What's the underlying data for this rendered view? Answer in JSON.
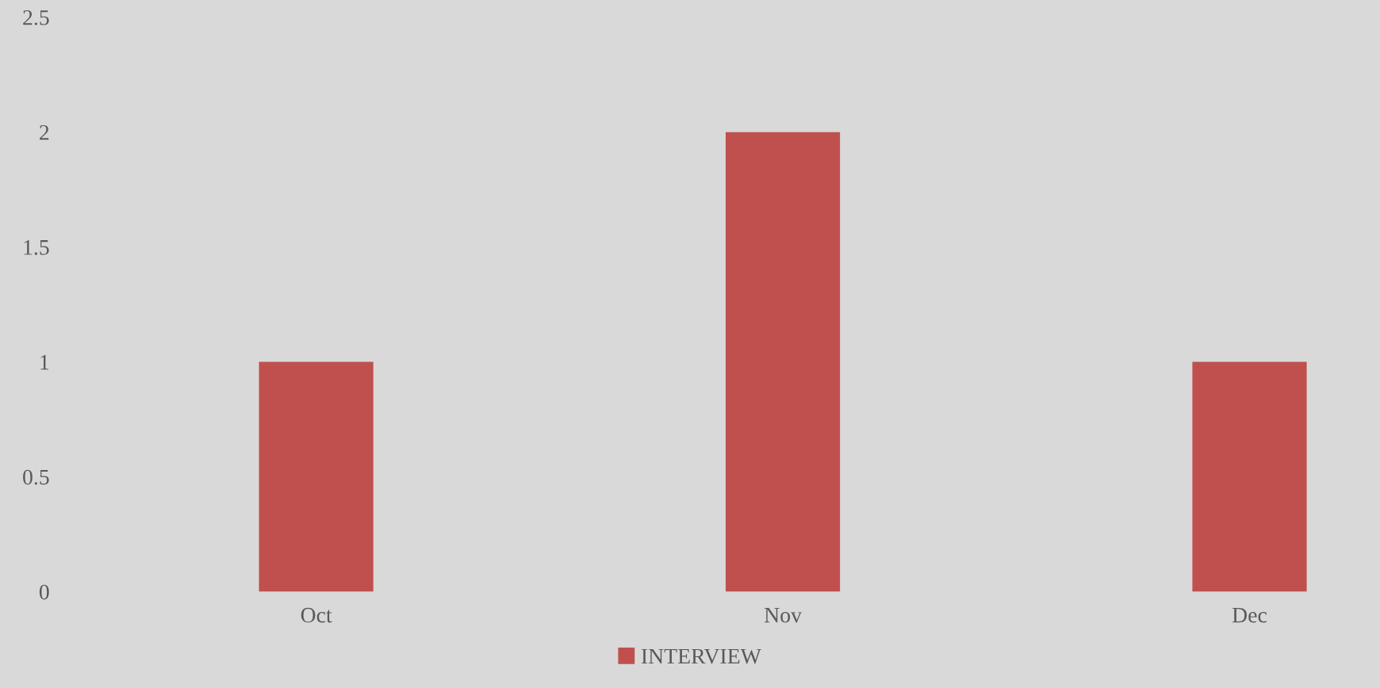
{
  "chart_data": {
    "type": "bar",
    "categories": [
      "Oct",
      "Nov",
      "Dec"
    ],
    "series": [
      {
        "name": "INTERVIEW",
        "color": "#c0504d",
        "values": [
          1,
          2,
          1
        ]
      }
    ],
    "ylim": [
      0,
      2.5
    ],
    "yticks": [
      0,
      0.5,
      1,
      1.5,
      2,
      2.5
    ],
    "grid": false,
    "legend": "bottom"
  }
}
